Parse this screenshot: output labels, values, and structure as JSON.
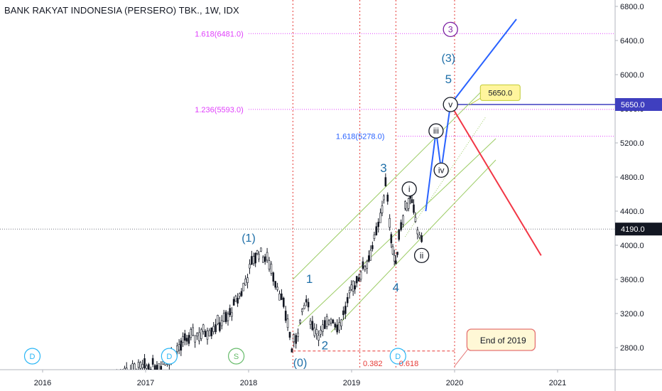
{
  "title": "BANK RAKYAT INDONESIA (PERSERO) TBK., 1W, IDX",
  "colors": {
    "up": "#131722",
    "price_line": "#131722",
    "fib": "#e040fb",
    "red_dash": "#e53935",
    "channel": "#9ccc65",
    "wave_blue": "#2962ff",
    "wave_red": "#f23645",
    "label_teal": "#1e6fa8",
    "tag_dark": "#131722",
    "tag_blue": "#3f3fbf"
  },
  "chart_data": {
    "type": "candlestick",
    "symbol": "BANK RAKYAT INDONESIA (PERSERO) TBK.",
    "interval": "1W",
    "exchange": "IDX",
    "x_ticks": [
      "2016",
      "2017",
      "2018",
      "2019",
      "2020",
      "2021"
    ],
    "y_ticks": [
      "2800.0",
      "3200.0",
      "3600.0",
      "4000.0",
      "4400.0",
      "4800.0",
      "5200.0",
      "5600.0",
      "6000.0",
      "6400.0",
      "6800.0"
    ],
    "ylim": [
      2560,
      6900
    ],
    "xlim": [
      2015.6,
      2021.45
    ],
    "last_price": "4190.0",
    "target_price": "5650.0",
    "price_path": [
      [
        2016.7,
        2480
      ],
      [
        2016.95,
        2550
      ],
      [
        2017.15,
        2600
      ],
      [
        2017.25,
        2700
      ],
      [
        2017.4,
        2900
      ],
      [
        2017.6,
        3000
      ],
      [
        2017.8,
        3150
      ],
      [
        2017.95,
        3500
      ],
      [
        2018.05,
        3850
      ],
      [
        2018.1,
        3920
      ],
      [
        2018.2,
        3800
      ],
      [
        2018.3,
        3450
      ],
      [
        2018.38,
        3100
      ],
      [
        2018.42,
        2780
      ],
      [
        2018.48,
        3000
      ],
      [
        2018.56,
        3350
      ],
      [
        2018.62,
        3050
      ],
      [
        2018.7,
        2950
      ],
      [
        2018.8,
        3150
      ],
      [
        2018.88,
        3050
      ],
      [
        2018.98,
        3400
      ],
      [
        2019.05,
        3600
      ],
      [
        2019.15,
        3800
      ],
      [
        2019.22,
        4050
      ],
      [
        2019.28,
        4300
      ],
      [
        2019.33,
        4720
      ],
      [
        2019.37,
        4300
      ],
      [
        2019.4,
        3950
      ],
      [
        2019.43,
        3750
      ],
      [
        2019.46,
        4150
      ],
      [
        2019.52,
        4450
      ],
      [
        2019.57,
        4550
      ],
      [
        2019.62,
        4300
      ],
      [
        2019.66,
        4050
      ],
      [
        2019.7,
        4190
      ]
    ],
    "fib_levels": [
      {
        "label": "1.618(6481.0)",
        "value": 6481
      },
      {
        "label": "1.236(5593.0)",
        "value": 5593
      },
      {
        "label": "1.618(5278.0)",
        "value": 5278
      }
    ],
    "time_fib": [
      "0.382",
      "0.618"
    ],
    "vertical_lines": [
      2018.43,
      2019.08,
      2019.43,
      2020.0
    ],
    "wave_labels": [
      {
        "text": "(1)",
        "x": 2018.0,
        "y": 4040
      },
      {
        "text": "1",
        "x": 2018.59,
        "y": 3560
      },
      {
        "text": "2",
        "x": 2018.74,
        "y": 2780
      },
      {
        "text": "3",
        "x": 2019.31,
        "y": 4860
      },
      {
        "text": "4",
        "x": 2019.43,
        "y": 3460
      },
      {
        "text": "(3)",
        "x": 2019.94,
        "y": 6150
      },
      {
        "text": "5",
        "x": 2019.94,
        "y": 5900
      },
      {
        "text": "(0)",
        "x": 2018.5,
        "y": 2580
      }
    ],
    "circled_labels": [
      {
        "text": "3",
        "x": 2019.96,
        "y": 6530
      },
      {
        "text": "v",
        "x": 2019.96,
        "y": 5650
      },
      {
        "text": "iii",
        "x": 2019.82,
        "y": 5340
      },
      {
        "text": "iv",
        "x": 2019.87,
        "y": 4880
      },
      {
        "text": "i",
        "x": 2019.56,
        "y": 4660
      },
      {
        "text": "ii",
        "x": 2019.68,
        "y": 3880
      }
    ],
    "events": [
      {
        "text": "D",
        "x": 2015.9
      },
      {
        "text": "D",
        "x": 2017.23
      },
      {
        "text": "S",
        "x": 2017.88
      },
      {
        "text": "D",
        "x": 2019.45
      }
    ],
    "callouts": [
      {
        "text": "5650.0",
        "x": 2020.35,
        "y": 5780
      },
      {
        "text": "End of 2019",
        "x": 2020.13,
        "y": 2900
      }
    ]
  }
}
